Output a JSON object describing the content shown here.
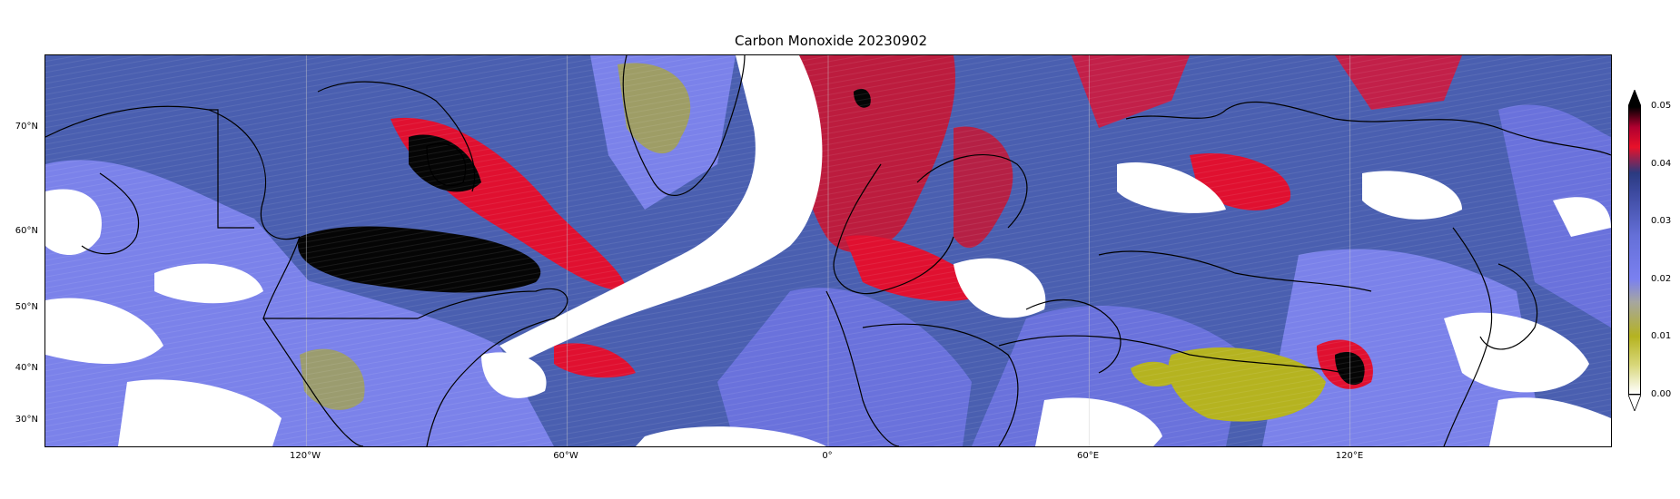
{
  "title": "Carbon Monoxide 20230902",
  "axes": {
    "lat_ticks": [
      "70°N",
      "60°N",
      "50°N",
      "40°N",
      "30°N"
    ],
    "lon_ticks": [
      "120°W",
      "60°W",
      "0°",
      "60°E",
      "120°E"
    ]
  },
  "colorbar": {
    "ticks": [
      "0.05",
      "0.04",
      "0.03",
      "0.02",
      "0.01",
      "0.00"
    ],
    "min": 0.0,
    "max": 0.05,
    "extend": "both",
    "colors": [
      "#ffffff",
      "#b5b320",
      "#7a80f0",
      "#3d4aa0",
      "#2a3a80",
      "#e8112a",
      "#000000"
    ]
  },
  "map": {
    "projection": "PlateCarree",
    "lon_range": [
      -180,
      180
    ],
    "lat_range": [
      25,
      80
    ],
    "gridlines": true,
    "colors": {
      "background_field": "#4a5fb0",
      "low_field": "#7b82ea",
      "very_low_field": "#b3af22",
      "high_field": "#e01030",
      "extreme_field": "#000000",
      "missing_data": "#ffffff"
    }
  }
}
